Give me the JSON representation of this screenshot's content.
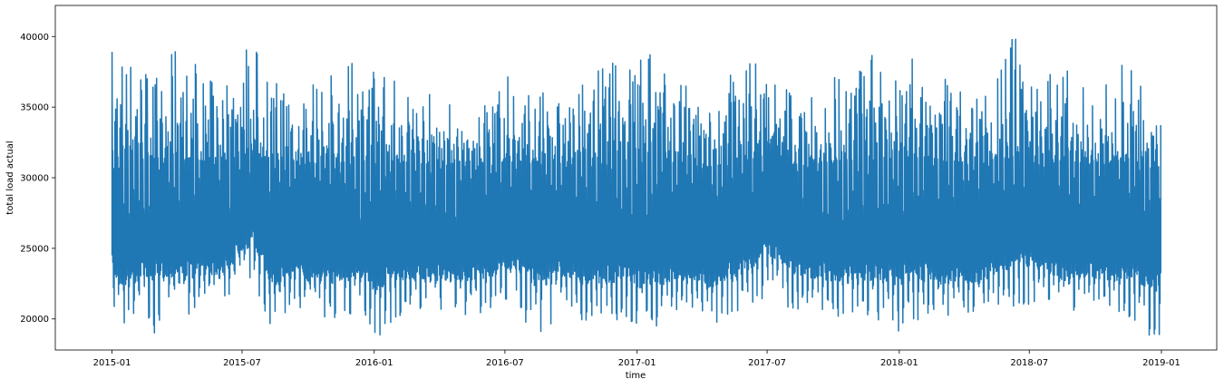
{
  "chart_data": {
    "type": "line",
    "title": "",
    "xlabel": "time",
    "ylabel": "total load actual",
    "x_ticks": [
      {
        "value": "2015-01-01",
        "label": "2015-01"
      },
      {
        "value": "2015-07-01",
        "label": "2015-07"
      },
      {
        "value": "2016-01-01",
        "label": "2016-01"
      },
      {
        "value": "2016-07-01",
        "label": "2016-07"
      },
      {
        "value": "2017-01-01",
        "label": "2017-01"
      },
      {
        "value": "2017-07-01",
        "label": "2017-07"
      },
      {
        "value": "2018-01-01",
        "label": "2018-01"
      },
      {
        "value": "2018-07-01",
        "label": "2018-07"
      },
      {
        "value": "2019-01-01",
        "label": "2019-01"
      }
    ],
    "y_ticks": [
      20000,
      25000,
      30000,
      35000,
      40000
    ],
    "xlim": [
      "2014-10-14",
      "2019-03-19"
    ],
    "ylim": [
      17800,
      42200
    ],
    "grid": false,
    "legend": "none",
    "series_color": "#1f77b4",
    "x_start": "2015-01-01",
    "x_end": "2018-12-31",
    "series": [
      {
        "name": "",
        "x": [
          "2015-01-01",
          "2015-01-15",
          "2015-02-01",
          "2015-02-15",
          "2015-03-01",
          "2015-03-15",
          "2015-04-01",
          "2015-04-15",
          "2015-05-01",
          "2015-05-15",
          "2015-06-01",
          "2015-06-15",
          "2015-07-01",
          "2015-07-15",
          "2015-08-01",
          "2015-08-15",
          "2015-09-01",
          "2015-09-15",
          "2015-10-01",
          "2015-10-15",
          "2015-11-01",
          "2015-11-15",
          "2015-12-01",
          "2015-12-15",
          "2016-01-01",
          "2016-01-15",
          "2016-02-01",
          "2016-02-15",
          "2016-03-01",
          "2016-03-15",
          "2016-04-01",
          "2016-04-15",
          "2016-05-01",
          "2016-05-15",
          "2016-06-01",
          "2016-06-15",
          "2016-07-01",
          "2016-07-15",
          "2016-08-01",
          "2016-08-15",
          "2016-09-01",
          "2016-09-15",
          "2016-10-01",
          "2016-10-15",
          "2016-11-01",
          "2016-11-15",
          "2016-12-01",
          "2016-12-15",
          "2017-01-01",
          "2017-01-15",
          "2017-02-01",
          "2017-02-15",
          "2017-03-01",
          "2017-03-15",
          "2017-04-01",
          "2017-04-15",
          "2017-05-01",
          "2017-05-15",
          "2017-06-01",
          "2017-06-15",
          "2017-07-01",
          "2017-07-15",
          "2017-08-01",
          "2017-08-15",
          "2017-09-01",
          "2017-09-15",
          "2017-10-01",
          "2017-10-15",
          "2017-11-01",
          "2017-11-15",
          "2017-12-01",
          "2017-12-15",
          "2018-01-01",
          "2018-01-15",
          "2018-02-01",
          "2018-02-15",
          "2018-03-01",
          "2018-03-15",
          "2018-04-01",
          "2018-04-15",
          "2018-05-01",
          "2018-05-15",
          "2018-06-01",
          "2018-06-15",
          "2018-07-01",
          "2018-07-15",
          "2018-08-01",
          "2018-08-15",
          "2018-09-01",
          "2018-09-15",
          "2018-10-01",
          "2018-10-15",
          "2018-11-01",
          "2018-11-15",
          "2018-12-01",
          "2018-12-15"
        ],
        "daily_min": [
          20000,
          19200,
          19300,
          20800,
          19000,
          20500,
          21200,
          19900,
          21000,
          20500,
          20300,
          21500,
          21800,
          22500,
          20700,
          18700,
          20000,
          20800,
          20000,
          20500,
          19600,
          20600,
          19800,
          21000,
          18000,
          19500,
          19700,
          21000,
          20200,
          20800,
          20500,
          21200,
          20000,
          20200,
          20400,
          20800,
          21300,
          21000,
          19000,
          18600,
          19500,
          20300,
          20500,
          19800,
          19900,
          20300,
          19600,
          20300,
          18400,
          19800,
          19100,
          20100,
          20600,
          20200,
          20300,
          19000,
          20300,
          20200,
          20600,
          21000,
          21400,
          21200,
          20000,
          20800,
          20100,
          20300,
          19600,
          20300,
          20500,
          20000,
          20000,
          18700,
          19100,
          19800,
          19800,
          20400,
          19600,
          20500,
          20300,
          19800,
          20100,
          20800,
          20500,
          20900,
          21000,
          20800,
          20300,
          19700,
          20500,
          20700,
          20300,
          20200,
          20300,
          19900,
          19800,
          18200
        ],
        "daily_max": [
          40200,
          39200,
          38800,
          38500,
          37600,
          36800,
          40200,
          38600,
          38300,
          36900,
          37400,
          38000,
          39800,
          40000,
          38400,
          36800,
          38000,
          37200,
          38100,
          36200,
          38000,
          37000,
          38300,
          38100,
          37800,
          38200,
          37000,
          36500,
          37000,
          36100,
          36800,
          35500,
          34300,
          33000,
          35100,
          36000,
          37500,
          37300,
          37000,
          35700,
          36600,
          35500,
          35300,
          36500,
          37500,
          38500,
          38300,
          37700,
          40000,
          41000,
          38500,
          37200,
          37100,
          36500,
          35200,
          34800,
          36500,
          37900,
          38900,
          39000,
          38700,
          37800,
          37000,
          35400,
          35900,
          36700,
          37600,
          37700,
          38000,
          38600,
          38900,
          38500,
          38900,
          38600,
          38100,
          37800,
          37300,
          36600,
          36000,
          35600,
          37000,
          38100,
          39500,
          40500,
          40600,
          39300,
          38700,
          38000,
          37600,
          36500,
          36900,
          37300,
          38100,
          37900,
          37300,
          34000
        ],
        "baseline_min": [
          24500,
          24000,
          24000,
          24200,
          24300,
          24100,
          24000,
          24200,
          24200,
          24500,
          24500,
          24800,
          26300,
          26500,
          24900,
          23800,
          24000,
          24200,
          24100,
          24000,
          23900,
          24000,
          24000,
          23900,
          23700,
          23800,
          23800,
          23900,
          23800,
          23700,
          23900,
          23700,
          24000,
          23900,
          24100,
          24200,
          24700,
          24800,
          24500,
          24200,
          24300,
          24300,
          24100,
          23900,
          23700,
          23900,
          24100,
          24000,
          23700,
          23900,
          24000,
          23900,
          23800,
          23700,
          23800,
          23700,
          24000,
          24300,
          24700,
          24900,
          26000,
          25800,
          24800,
          24300,
          24100,
          24200,
          24100,
          24000,
          24000,
          24100,
          24100,
          24000,
          24100,
          24200,
          24100,
          24000,
          23800,
          23800,
          23900,
          23800,
          24100,
          24300,
          24600,
          24800,
          25000,
          24900,
          24600,
          24200,
          24100,
          24200,
          24200,
          24100,
          24000,
          24000,
          24000,
          23900
        ]
      }
    ]
  }
}
